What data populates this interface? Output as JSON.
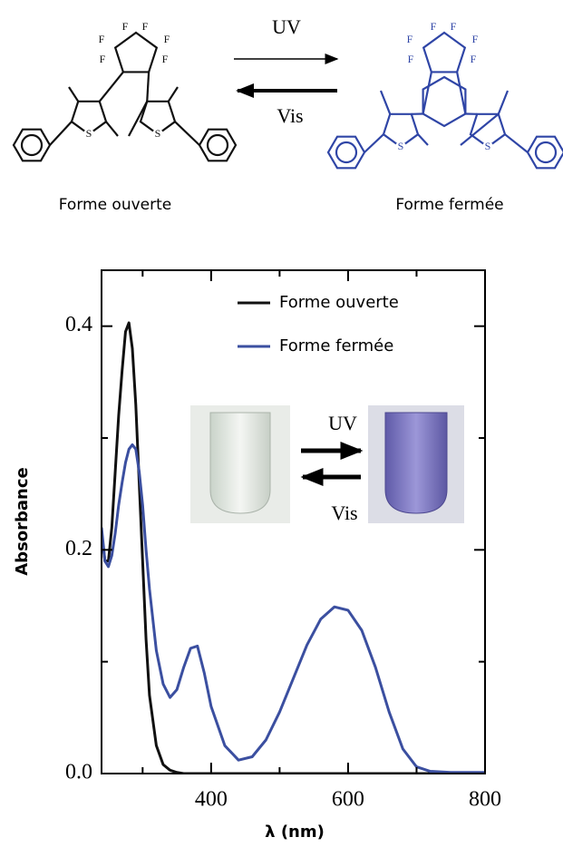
{
  "scheme": {
    "forward_label": "UV",
    "back_label": "Vis",
    "open_form": {
      "name": "Forme ouverte",
      "atoms": [
        "F",
        "F",
        "F",
        "F",
        "F",
        "F",
        "S",
        "S"
      ]
    },
    "closed_form": {
      "name": "Forme fermée",
      "atoms": [
        "F",
        "F",
        "F",
        "F",
        "F",
        "F",
        "S",
        "S"
      ]
    }
  },
  "chart_data": {
    "type": "line",
    "x_label": "λ (nm)",
    "y_label": "Absorbance",
    "x": [
      240,
      245,
      250,
      255,
      260,
      265,
      270,
      275,
      280,
      285,
      290,
      295,
      300,
      305,
      310,
      320,
      330,
      340,
      350,
      360,
      370,
      380,
      390,
      400,
      420,
      440,
      460,
      480,
      500,
      520,
      540,
      560,
      580,
      600,
      620,
      640,
      660,
      680,
      700,
      720,
      750,
      800
    ],
    "series": [
      {
        "name": "Forme ouverte",
        "color": "#111111",
        "values": [
          0.215,
          0.19,
          0.19,
          0.22,
          0.27,
          0.32,
          0.36,
          0.395,
          0.403,
          0.38,
          0.33,
          0.26,
          0.19,
          0.12,
          0.07,
          0.025,
          0.008,
          0.003,
          0.001,
          0,
          0,
          0,
          0,
          0,
          0,
          0,
          0,
          0,
          0,
          0,
          0,
          0,
          0,
          0,
          0,
          0,
          0,
          0,
          0,
          0,
          0,
          0
        ]
      },
      {
        "name": "Forme fermée",
        "color": "#3b4fa0",
        "values": [
          0.22,
          0.19,
          0.185,
          0.195,
          0.215,
          0.24,
          0.26,
          0.278,
          0.29,
          0.294,
          0.29,
          0.27,
          0.24,
          0.2,
          0.165,
          0.11,
          0.08,
          0.068,
          0.075,
          0.095,
          0.112,
          0.114,
          0.09,
          0.06,
          0.025,
          0.012,
          0.015,
          0.03,
          0.055,
          0.085,
          0.115,
          0.138,
          0.149,
          0.146,
          0.128,
          0.095,
          0.055,
          0.022,
          0.006,
          0.002,
          0.001,
          0.001
        ]
      }
    ],
    "xlim": [
      240,
      800
    ],
    "ylim": [
      0,
      0.45
    ],
    "xticks": [
      400,
      600,
      800
    ],
    "xticks_minor": [
      300,
      500,
      700
    ],
    "yticks": [
      {
        "value": 0,
        "label": "0.0"
      },
      0.2,
      0.4
    ],
    "yticks_minor": [
      0.1,
      0.3
    ],
    "legend": "upper right",
    "inset": {
      "forward_label": "UV",
      "back_label": "Vis"
    }
  }
}
